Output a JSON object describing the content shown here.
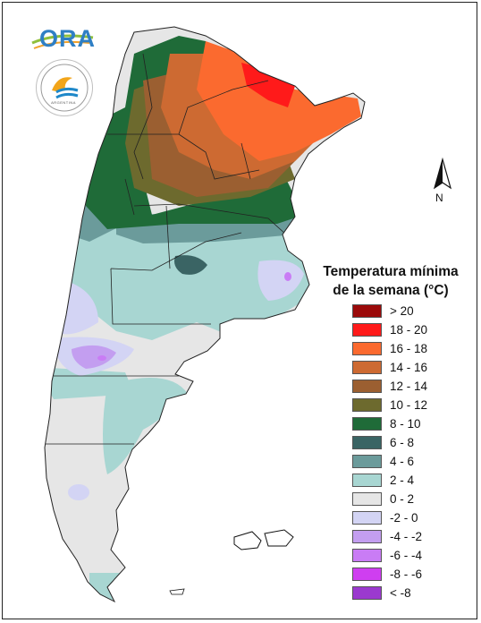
{
  "logo": {
    "ora_text": "ORA",
    "seal_text": "ARGENTINA"
  },
  "north_arrow": {
    "label": "N"
  },
  "legend": {
    "title_line1": "Temperatura mínima",
    "title_line2": "de la semana (°C)",
    "items": [
      {
        "label": "> 20",
        "color": "#9b0a0a"
      },
      {
        "label": "18 - 20",
        "color": "#ff1a1a"
      },
      {
        "label": "16 - 18",
        "color": "#fb6a2f"
      },
      {
        "label": "14 - 16",
        "color": "#cd6a32"
      },
      {
        "label": "12 - 14",
        "color": "#9b5f31"
      },
      {
        "label": "10 - 12",
        "color": "#6d6a2e"
      },
      {
        "label": "8 - 10",
        "color": "#1f6b38"
      },
      {
        "label": "6 - 8",
        "color": "#3a6464"
      },
      {
        "label": "4 - 6",
        "color": "#6b9b9b"
      },
      {
        "label": "2 - 4",
        "color": "#a8d6d2"
      },
      {
        "label": "0 - 2",
        "color": "#e6e6e6"
      },
      {
        "label": "-2 - 0",
        "color": "#d3d4f4"
      },
      {
        "label": "-4 - -2",
        "color": "#c39ef0"
      },
      {
        "label": "-6 - -4",
        "color": "#c97cf5"
      },
      {
        "label": "-8 - -6",
        "color": "#cf3ef0"
      },
      {
        "label": "< -8",
        "color": "#9b39cf"
      }
    ]
  }
}
